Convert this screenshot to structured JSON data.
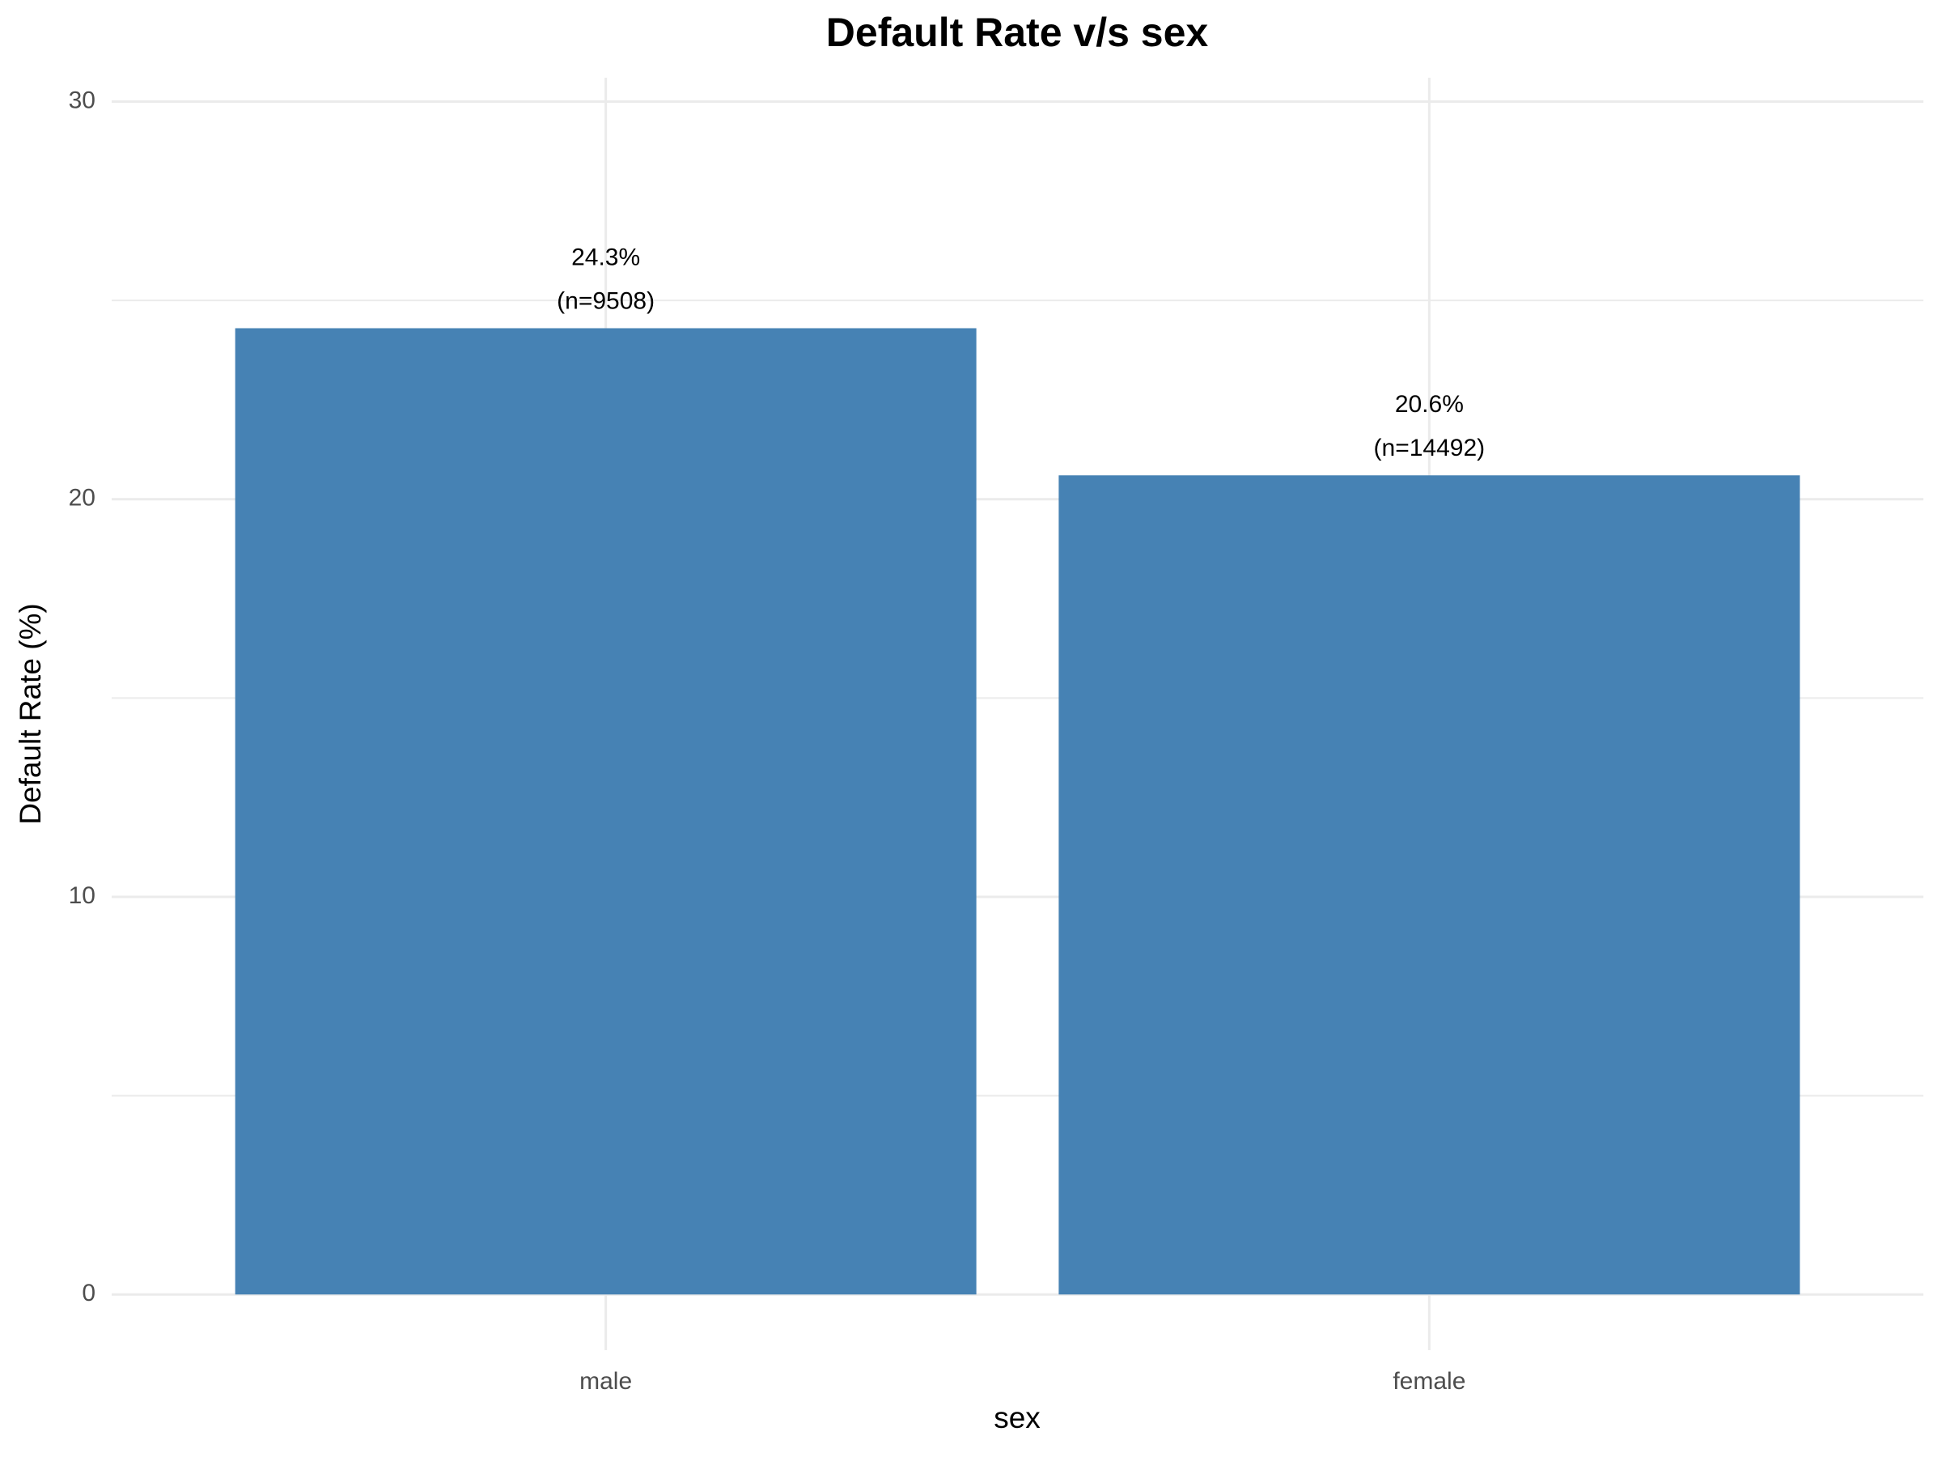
{
  "chart_data": {
    "type": "bar",
    "title": "Default Rate v/s sex",
    "x_label": "sex",
    "y_label": "Default Rate (%)",
    "categories": [
      "male",
      "female"
    ],
    "values": [
      24.3,
      20.6
    ],
    "value_labels": [
      "24.3%",
      "20.6%"
    ],
    "count_labels": [
      "(n=9508)",
      "(n=14492)"
    ],
    "color": "#4682b4",
    "ylim": [
      -1.4,
      30.6
    ],
    "yticks": [
      0,
      10,
      20,
      30
    ],
    "minor_yticks": [
      5,
      15,
      25
    ],
    "grid": true
  }
}
